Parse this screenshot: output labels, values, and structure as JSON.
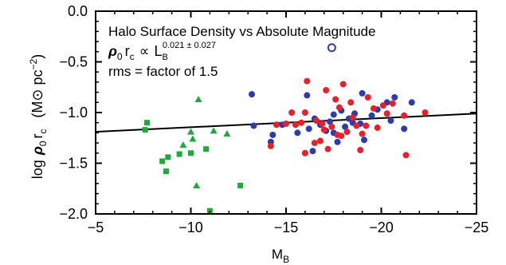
{
  "chart_data": {
    "type": "scatter",
    "xlim": [
      -5,
      -25
    ],
    "ylim": [
      -2.0,
      0.0
    ],
    "x_ticks": [
      -5,
      -10,
      -15,
      -20,
      -25
    ],
    "x_tick_labels": [
      "−5",
      "−10",
      "−15",
      "−20",
      "−25"
    ],
    "y_ticks": [
      0.0,
      -0.5,
      -1.0,
      -1.5,
      -2.0
    ],
    "y_tick_labels": [
      "0.0",
      "−0.5",
      "−1.0",
      "−1.5",
      "−2.0"
    ],
    "xlabel_main": "M",
    "xlabel_sub": "B",
    "ylabel": {
      "log": "log",
      "rho": "ρ",
      "rho_sub": "0",
      "r": "r",
      "r_sub": "c",
      "units_open": "(M",
      "sun": "⊙",
      "units_pc": "pc",
      "units_exp": "−2",
      "units_close": ")"
    },
    "annotations": {
      "line1": "Halo Surface Density vs Absolute Magnitude",
      "line2": {
        "rho": "ρ",
        "rho_sub": "0",
        "r": "r",
        "r_sub": "c",
        "prop": "∝",
        "L": "L",
        "L_sub": "B",
        "exponent": "0.021 ± 0.027"
      },
      "line3": "rms = factor of 1.5"
    },
    "colors": {
      "red": "#e8202a",
      "blue": "#2b3cb0",
      "green": "#1aab3c",
      "line": "#000000"
    },
    "fit_line": {
      "x": [
        -5,
        -25
      ],
      "y": [
        -1.19,
        -1.01
      ]
    },
    "series": [
      {
        "color": "green",
        "marker": "square",
        "points": [
          [
            -7.6,
            -1.17
          ],
          [
            -7.7,
            -1.1
          ],
          [
            -8.5,
            -1.48
          ],
          [
            -8.7,
            -1.58
          ],
          [
            -8.8,
            -1.44
          ],
          [
            -9.4,
            -1.41
          ],
          [
            -10.0,
            -1.4
          ],
          [
            -10.8,
            -1.36
          ],
          [
            -11.0,
            -1.97
          ],
          [
            -12.6,
            -1.72
          ]
        ]
      },
      {
        "color": "green",
        "marker": "triangle",
        "points": [
          [
            -9.6,
            -1.32
          ],
          [
            -10.0,
            -1.19
          ],
          [
            -10.1,
            -1.26
          ],
          [
            -10.3,
            -1.72
          ],
          [
            -10.4,
            -0.87
          ],
          [
            -11.2,
            -1.18
          ],
          [
            -11.9,
            -1.21
          ]
        ]
      },
      {
        "color": "blue",
        "marker": "circle",
        "points": [
          [
            -13.2,
            -0.82
          ],
          [
            -13.3,
            -1.13
          ],
          [
            -14.2,
            -1.29
          ],
          [
            -14.3,
            -1.22
          ],
          [
            -14.8,
            -1.12
          ],
          [
            -15.6,
            -1.2
          ],
          [
            -16.1,
            -0.83
          ],
          [
            -16.2,
            -1.16
          ],
          [
            -16.4,
            -1.38
          ],
          [
            -16.5,
            -1.06
          ],
          [
            -16.8,
            -1.12
          ],
          [
            -17.1,
            -1.18
          ],
          [
            -17.3,
            -1.09
          ],
          [
            -17.5,
            -1.02
          ],
          [
            -17.5,
            -1.2
          ],
          [
            -17.7,
            -1.29
          ],
          [
            -17.9,
            -0.98
          ],
          [
            -18.1,
            -1.14
          ],
          [
            -18.3,
            -1.06
          ],
          [
            -18.5,
            -1.1
          ],
          [
            -18.6,
            -1.01
          ],
          [
            -18.9,
            -1.11
          ],
          [
            -19.0,
            -0.81
          ],
          [
            -19.1,
            -1.27
          ],
          [
            -19.5,
            -1.03
          ],
          [
            -19.8,
            -0.97
          ],
          [
            -20.3,
            -0.9
          ],
          [
            -20.5,
            -1.08
          ],
          [
            -20.7,
            -0.85
          ],
          [
            -21.2,
            -1.16
          ],
          [
            -21.6,
            -0.9
          ]
        ]
      },
      {
        "color": "blue",
        "marker": "open-circle",
        "points": [
          [
            -17.4,
            -0.36
          ]
        ]
      },
      {
        "color": "red",
        "marker": "circle",
        "points": [
          [
            -14.2,
            -1.33
          ],
          [
            -14.5,
            -1.12
          ],
          [
            -15.0,
            -1.11
          ],
          [
            -15.3,
            -1.0
          ],
          [
            -15.5,
            -1.12
          ],
          [
            -15.8,
            -1.1
          ],
          [
            -16.0,
            -1.0
          ],
          [
            -16.0,
            -1.4
          ],
          [
            -16.1,
            -0.69
          ],
          [
            -16.5,
            -1.3
          ],
          [
            -16.6,
            -1.08
          ],
          [
            -16.8,
            -1.28
          ],
          [
            -16.9,
            -1.11
          ],
          [
            -17.0,
            -1.17
          ],
          [
            -17.1,
            -0.78
          ],
          [
            -17.2,
            -1.36
          ],
          [
            -17.4,
            -1.14
          ],
          [
            -17.6,
            -0.87
          ],
          [
            -17.7,
            -1.22
          ],
          [
            -17.8,
            -0.95
          ],
          [
            -17.9,
            -1.23
          ],
          [
            -18.0,
            -0.72
          ],
          [
            -18.2,
            -1.19
          ],
          [
            -18.4,
            -0.9
          ],
          [
            -18.5,
            -1.05
          ],
          [
            -18.7,
            -1.13
          ],
          [
            -18.9,
            -1.37
          ],
          [
            -19.0,
            -1.21
          ],
          [
            -19.2,
            -1.13
          ],
          [
            -19.3,
            -0.85
          ],
          [
            -19.6,
            -0.96
          ],
          [
            -19.8,
            -1.15
          ],
          [
            -20.1,
            -0.93
          ],
          [
            -20.3,
            -1.01
          ],
          [
            -20.6,
            -0.91
          ],
          [
            -21.2,
            -1.03
          ],
          [
            -21.3,
            -1.42
          ],
          [
            -22.3,
            -1.0
          ]
        ]
      }
    ]
  }
}
